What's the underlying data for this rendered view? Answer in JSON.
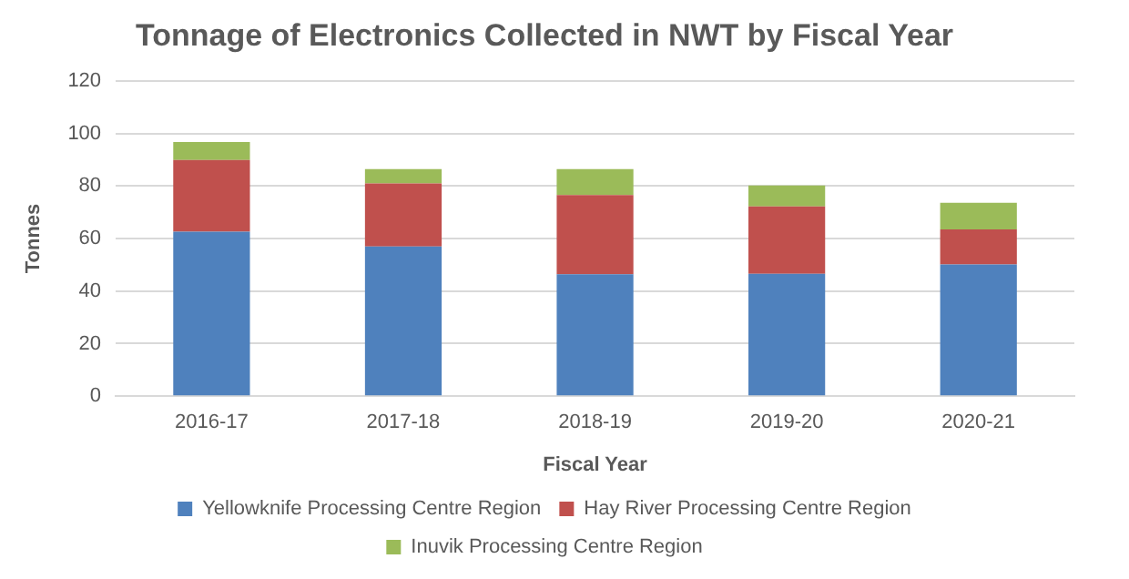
{
  "chart_data": {
    "type": "bar",
    "title": "Tonnage of Electronics Collected in NWT by Fiscal Year",
    "xlabel": "Fiscal Year",
    "ylabel": "Tonnes",
    "categories": [
      "2016-17",
      "2017-18",
      "2018-19",
      "2019-20",
      "2020-21"
    ],
    "series": [
      {
        "name": "Yellowknife Processing Centre Region",
        "color": "#4f81bd",
        "values": [
          62.6,
          57,
          46.4,
          46.6,
          50.1
        ]
      },
      {
        "name": "Hay River Processing Centre Region",
        "color": "#c0504d",
        "values": [
          27.3,
          24,
          30.1,
          25.6,
          13.4
        ]
      },
      {
        "name": "Inuvik Processing Centre Region",
        "color": "#9bbb59",
        "values": [
          6.8,
          5.4,
          9.9,
          8,
          10.1
        ]
      }
    ],
    "stacked": true,
    "ylim": [
      0,
      120
    ],
    "yticks": [
      0,
      20,
      40,
      60,
      80,
      100,
      120
    ],
    "grid": "y",
    "legend": "bottom"
  }
}
